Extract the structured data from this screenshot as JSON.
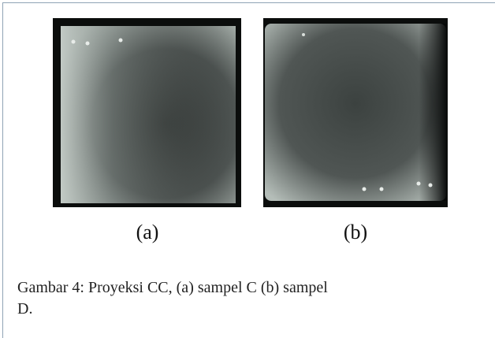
{
  "figure": {
    "panels": [
      {
        "label": "(a)"
      },
      {
        "label": "(b)"
      }
    ],
    "caption": "Gambar 4: Proyeksi CC, (a) sampel C (b) sampel D."
  }
}
